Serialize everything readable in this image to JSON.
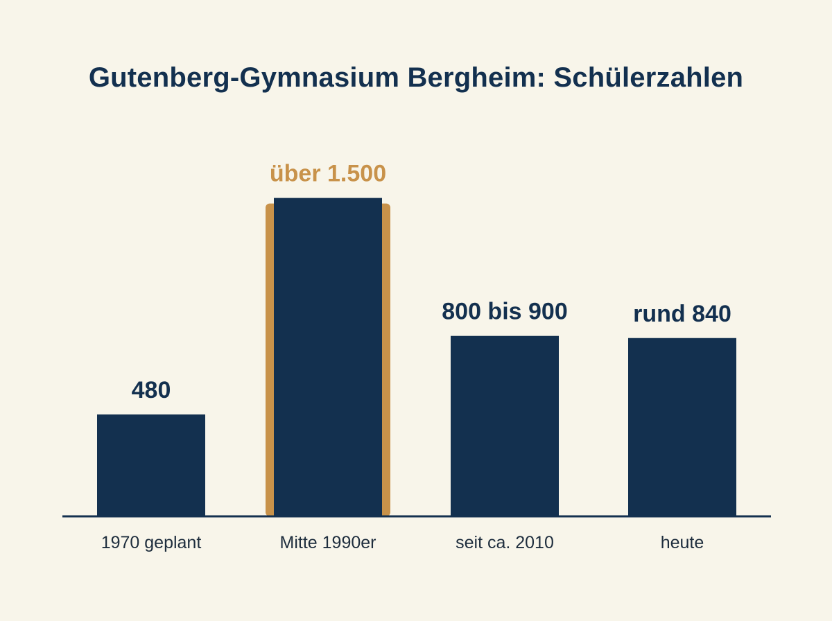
{
  "colors": {
    "background": "#f8f5ea",
    "bar": "#13304f",
    "highlight": "#c8924a",
    "text": "#13304f"
  },
  "chart_data": {
    "type": "bar",
    "title": "Gutenberg-Gymnasium Bergheim: Schülerzahlen",
    "xlabel": "",
    "ylabel": "",
    "grid": false,
    "legend": "none",
    "ylim": [
      0,
      1600
    ],
    "categories": [
      "1970 geplant",
      "Mitte 1990er",
      "seit ca. 2010",
      "heute"
    ],
    "values": [
      480,
      1500,
      850,
      840
    ],
    "value_labels": [
      "480",
      "über 1.500",
      "800 bis 900",
      "rund 840"
    ],
    "highlight_index": 1
  }
}
